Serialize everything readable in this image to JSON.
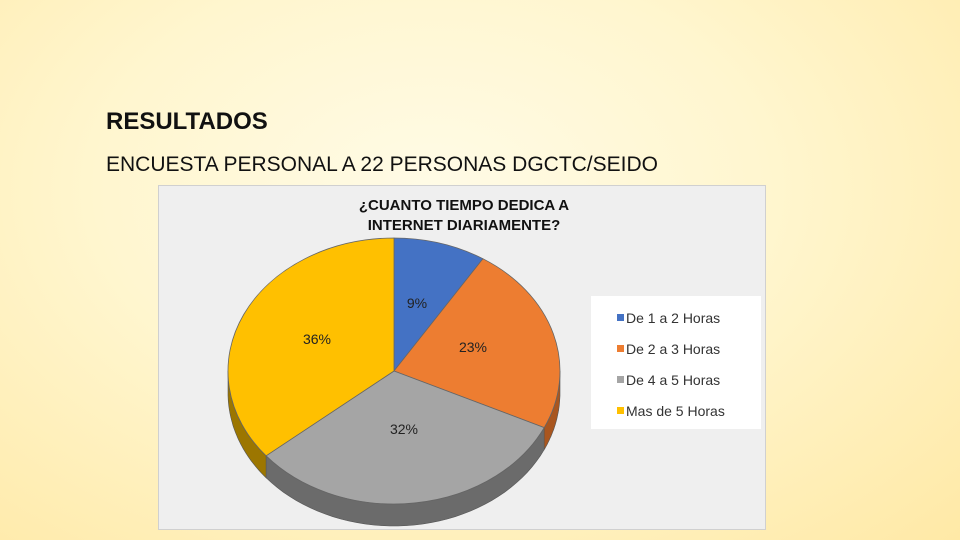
{
  "slide": {
    "title": "RESULTADOS",
    "subtitle": "ENCUESTA PERSONAL A 22 PERSONAS DGCTC/SEIDO"
  },
  "chart_data": {
    "type": "pie",
    "title_lines": [
      "¿CUANTO TIEMPO DEDICA A",
      "INTERNET DIARIAMENTE?"
    ],
    "categories": [
      "De 1 a 2 Horas",
      "De 2 a 3 Horas",
      "De 4 a 5 Horas",
      "Mas de 5 Horas"
    ],
    "values": [
      9,
      23,
      32,
      36
    ],
    "labels": [
      "9%",
      "23%",
      "32%",
      "36%"
    ],
    "colors": [
      "#4472C4",
      "#ED7D31",
      "#A5A5A5",
      "#FFC000"
    ],
    "side_colors": [
      "#2f528f",
      "#a9561f",
      "#6b6b6b",
      "#9c7600"
    ],
    "legend_position": "right",
    "style": "3d"
  }
}
